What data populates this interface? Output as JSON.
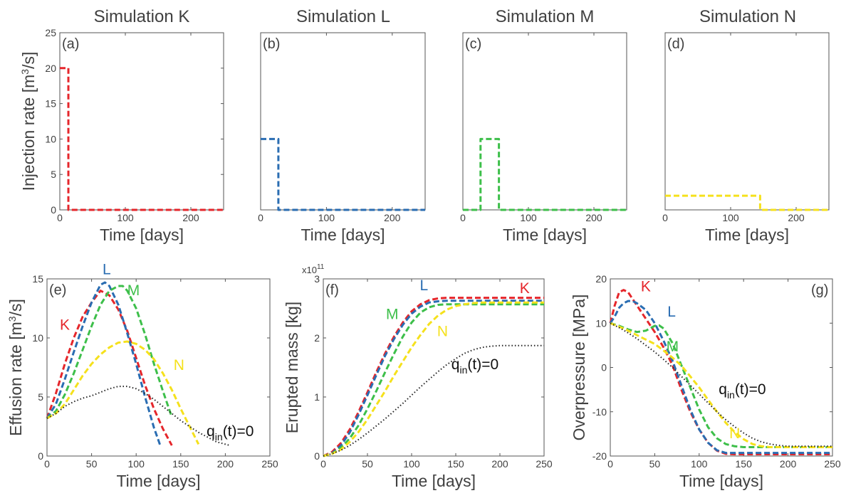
{
  "figure": {
    "panel_titles": [
      "Simulation K",
      "Simulation L",
      "Simulation M",
      "Simulation N"
    ]
  },
  "colors": {
    "K": "#e5262b",
    "L": "#2a6db2",
    "M": "#3dbf4a",
    "N": "#f5e11c",
    "zero": "#222222",
    "axis": "#555555",
    "text": "#404040"
  },
  "chart_data": [
    {
      "id": "a",
      "panel_label": "(a)",
      "type": "line",
      "title": "Simulation K",
      "xlabel": "Time [days]",
      "ylabel": "Injection rate  [m",
      "ylabel_sup": "3",
      "ylabel_end": "/s]",
      "xlim": [
        0,
        250
      ],
      "ylim": [
        0,
        25
      ],
      "xticks": [
        0,
        100,
        200
      ],
      "yticks": [
        0,
        5,
        10,
        15,
        20,
        25
      ],
      "series": [
        {
          "key": "K",
          "x": [
            0,
            13,
            13,
            250
          ],
          "y": [
            20,
            20,
            0,
            0
          ]
        }
      ]
    },
    {
      "id": "b",
      "panel_label": "(b)",
      "type": "line",
      "title": "Simulation L",
      "xlabel": "Time [days]",
      "xlim": [
        0,
        250
      ],
      "ylim": [
        0,
        25
      ],
      "xticks": [
        0,
        100,
        200
      ],
      "yticks": [],
      "series": [
        {
          "key": "L",
          "x": [
            0,
            27,
            27,
            250
          ],
          "y": [
            10,
            10,
            0,
            0
          ]
        }
      ]
    },
    {
      "id": "c",
      "panel_label": "(c)",
      "type": "line",
      "title": "Simulation M",
      "xlabel": "Time [days]",
      "xlim": [
        0,
        250
      ],
      "ylim": [
        0,
        25
      ],
      "xticks": [
        0,
        100,
        200
      ],
      "yticks": [],
      "series": [
        {
          "key": "M",
          "x": [
            0,
            27,
            27,
            55,
            55,
            250
          ],
          "y": [
            0,
            0,
            10,
            10,
            0,
            0
          ]
        }
      ]
    },
    {
      "id": "d",
      "panel_label": "(d)",
      "type": "line",
      "title": "Simulation N",
      "xlabel": "Time [days]",
      "xlim": [
        0,
        250
      ],
      "ylim": [
        0,
        25
      ],
      "xticks": [
        0,
        100,
        200
      ],
      "yticks": [],
      "series": [
        {
          "key": "N",
          "x": [
            0,
            145,
            145,
            250
          ],
          "y": [
            2,
            2,
            0,
            0
          ]
        }
      ]
    },
    {
      "id": "e",
      "panel_label": "(e)",
      "type": "line",
      "xlabel": "Time [days]",
      "ylabel": "Effusion rate  [m",
      "ylabel_sup": "3",
      "ylabel_end": "/s]",
      "xlim": [
        0,
        250
      ],
      "ylim": [
        0,
        15
      ],
      "xticks": [
        0,
        50,
        100,
        150,
        200,
        250
      ],
      "yticks": [
        0,
        5,
        10,
        15
      ],
      "series": [
        {
          "key": "K",
          "x": [
            0,
            10,
            20,
            30,
            40,
            50,
            60,
            70,
            80,
            90,
            100,
            110,
            120,
            130,
            140
          ],
          "y": [
            3.2,
            5.3,
            7.8,
            10,
            11.8,
            13,
            14,
            13.6,
            12.4,
            10.6,
            8.3,
            6,
            4,
            2.3,
            0.9
          ]
        },
        {
          "key": "L",
          "x": [
            0,
            10,
            20,
            30,
            40,
            50,
            60,
            65,
            70,
            80,
            90,
            100,
            110,
            120,
            127
          ],
          "y": [
            3.2,
            4.4,
            6.5,
            8.8,
            11,
            13,
            14.5,
            14.7,
            14.4,
            12.8,
            10.4,
            7.8,
            5,
            2.4,
            0.9
          ]
        },
        {
          "key": "M",
          "x": [
            0,
            10,
            20,
            30,
            40,
            50,
            60,
            70,
            80,
            85,
            90,
            100,
            110,
            120,
            130,
            140
          ],
          "y": [
            3.2,
            3.8,
            5.2,
            7,
            9,
            11,
            12.8,
            14,
            14.4,
            14.4,
            14,
            12.5,
            10.3,
            7.8,
            5.5,
            3.3
          ]
        },
        {
          "key": "N",
          "x": [
            0,
            10,
            20,
            30,
            40,
            50,
            60,
            70,
            80,
            90,
            100,
            110,
            120,
            130,
            140,
            150,
            160,
            170
          ],
          "y": [
            3.2,
            3.6,
            4.4,
            5.6,
            6.8,
            7.8,
            8.6,
            9.2,
            9.6,
            9.7,
            9.5,
            9,
            8.2,
            7,
            5.6,
            4,
            2.5,
            1
          ]
        },
        {
          "key": "zero",
          "x": [
            0,
            10,
            20,
            30,
            40,
            50,
            60,
            70,
            80,
            90,
            100,
            110,
            120,
            130,
            140,
            150,
            160,
            170,
            180,
            190,
            200,
            205
          ],
          "y": [
            3.2,
            3.6,
            4.2,
            4.6,
            4.9,
            5.1,
            5.4,
            5.7,
            5.9,
            5.9,
            5.7,
            5.3,
            4.8,
            4.2,
            3.6,
            3,
            2.5,
            2,
            1.6,
            1.2,
            1,
            0.9
          ]
        }
      ],
      "annotations": [
        {
          "text": "L",
          "key": "L",
          "x": 67,
          "y": 15.4
        },
        {
          "text": "M",
          "key": "M",
          "x": 97,
          "y": 13.6
        },
        {
          "text": "K",
          "key": "K",
          "x": 20,
          "y": 10.7
        },
        {
          "text": "N",
          "key": "N",
          "x": 148,
          "y": 7.3
        }
      ],
      "zero_label": {
        "text": "q",
        "sub": "in",
        "end": "(t)=0",
        "x": 179,
        "y": 1.7
      }
    },
    {
      "id": "f",
      "panel_label": "(f)",
      "type": "line",
      "xlabel": "Time [days]",
      "ylabel": "Erupted mass  [kg]",
      "y_multiplier": "x10",
      "y_multiplier_exp": "11",
      "xlim": [
        0,
        250
      ],
      "ylim": [
        0,
        3
      ],
      "xticks": [
        0,
        50,
        100,
        150,
        200,
        250
      ],
      "yticks": [
        0,
        1,
        2,
        3
      ],
      "series": [
        {
          "key": "K",
          "x": [
            0,
            10,
            20,
            30,
            40,
            50,
            60,
            70,
            80,
            90,
            100,
            110,
            120,
            130,
            140,
            150,
            250
          ],
          "y": [
            0,
            0.07,
            0.22,
            0.45,
            0.75,
            1.08,
            1.42,
            1.74,
            2.02,
            2.26,
            2.45,
            2.57,
            2.64,
            2.67,
            2.68,
            2.68,
            2.68
          ]
        },
        {
          "key": "L",
          "x": [
            0,
            10,
            20,
            30,
            40,
            50,
            60,
            70,
            80,
            90,
            100,
            110,
            120,
            130,
            140,
            250
          ],
          "y": [
            0,
            0.05,
            0.18,
            0.4,
            0.7,
            1.03,
            1.37,
            1.7,
            1.98,
            2.22,
            2.41,
            2.53,
            2.6,
            2.62,
            2.63,
            2.63
          ]
        },
        {
          "key": "M",
          "x": [
            0,
            10,
            20,
            30,
            40,
            50,
            60,
            70,
            80,
            90,
            100,
            110,
            120,
            130,
            140,
            150,
            250
          ],
          "y": [
            0,
            0.04,
            0.14,
            0.3,
            0.52,
            0.8,
            1.1,
            1.42,
            1.73,
            2.02,
            2.26,
            2.43,
            2.52,
            2.56,
            2.57,
            2.57,
            2.57
          ]
        },
        {
          "key": "N",
          "x": [
            0,
            10,
            20,
            30,
            40,
            50,
            60,
            70,
            80,
            90,
            100,
            110,
            120,
            130,
            140,
            150,
            160,
            170,
            180,
            250
          ],
          "y": [
            0,
            0.04,
            0.11,
            0.24,
            0.41,
            0.62,
            0.86,
            1.1,
            1.36,
            1.6,
            1.84,
            2.05,
            2.24,
            2.38,
            2.48,
            2.54,
            2.57,
            2.59,
            2.6,
            2.6
          ]
        },
        {
          "key": "zero",
          "x": [
            0,
            10,
            20,
            30,
            40,
            50,
            60,
            70,
            80,
            90,
            100,
            110,
            120,
            130,
            140,
            150,
            160,
            170,
            180,
            190,
            200,
            250
          ],
          "y": [
            0,
            0.04,
            0.1,
            0.18,
            0.28,
            0.39,
            0.51,
            0.63,
            0.76,
            0.89,
            1.03,
            1.17,
            1.3,
            1.43,
            1.55,
            1.65,
            1.74,
            1.8,
            1.84,
            1.86,
            1.87,
            1.87
          ]
        }
      ],
      "annotations": [
        {
          "text": "L",
          "key": "L",
          "x": 114,
          "y": 2.81
        },
        {
          "text": "K",
          "key": "K",
          "x": 228,
          "y": 2.76
        },
        {
          "text": "M",
          "key": "M",
          "x": 78,
          "y": 2.32
        },
        {
          "text": "N",
          "key": "N",
          "x": 135,
          "y": 2.03
        }
      ],
      "zero_label": {
        "text": "q",
        "sub": "in",
        "end": "(t)=0",
        "x": 145,
        "y": 1.47
      }
    },
    {
      "id": "g",
      "panel_label": "(g)",
      "type": "line",
      "xlabel": "Time [days]",
      "ylabel": "Overpressure [MPa]",
      "xlim": [
        0,
        250
      ],
      "ylim": [
        -20,
        20
      ],
      "xticks": [
        0,
        50,
        100,
        150,
        200,
        250
      ],
      "yticks": [
        -20,
        -10,
        0,
        10,
        20
      ],
      "series": [
        {
          "key": "K",
          "x": [
            0,
            5,
            10,
            15,
            20,
            25,
            30,
            40,
            50,
            60,
            70,
            80,
            90,
            100,
            110,
            120,
            130,
            140,
            250
          ],
          "y": [
            10,
            14,
            17,
            17.5,
            17,
            15.5,
            14,
            11,
            8,
            4.5,
            0.5,
            -5,
            -10,
            -14,
            -17,
            -18.8,
            -19.5,
            -19.6,
            -19.6
          ]
        },
        {
          "key": "L",
          "x": [
            0,
            5,
            10,
            15,
            20,
            25,
            30,
            40,
            50,
            60,
            70,
            80,
            90,
            100,
            110,
            120,
            130,
            250
          ],
          "y": [
            10,
            11.5,
            13.5,
            14.5,
            15,
            15,
            14.5,
            13,
            10,
            6,
            1.5,
            -4,
            -9.5,
            -14,
            -17,
            -18.7,
            -19.3,
            -19.3
          ]
        },
        {
          "key": "M",
          "x": [
            0,
            10,
            20,
            30,
            40,
            50,
            55,
            60,
            70,
            80,
            90,
            100,
            110,
            120,
            130,
            140,
            150,
            160,
            250
          ],
          "y": [
            10,
            9.4,
            8.6,
            8,
            8.3,
            9.4,
            9.5,
            8.8,
            5.5,
            0.5,
            -4.5,
            -9.5,
            -13.5,
            -16,
            -17.3,
            -17.8,
            -18,
            -18,
            -18
          ]
        },
        {
          "key": "N",
          "x": [
            0,
            10,
            20,
            30,
            40,
            50,
            60,
            70,
            80,
            90,
            100,
            110,
            120,
            130,
            140,
            150,
            160,
            170,
            180,
            250
          ],
          "y": [
            10,
            9.2,
            8.3,
            7.3,
            6.3,
            5.3,
            3.8,
            2.2,
            0.4,
            -2,
            -4.5,
            -7.3,
            -10,
            -12.5,
            -14.6,
            -16.2,
            -17.3,
            -17.8,
            -18,
            -18
          ]
        },
        {
          "key": "zero",
          "x": [
            0,
            10,
            20,
            30,
            40,
            50,
            60,
            70,
            80,
            90,
            100,
            110,
            120,
            130,
            140,
            150,
            160,
            170,
            180,
            190,
            200,
            250
          ],
          "y": [
            10,
            9,
            7.8,
            6.5,
            5,
            3.5,
            1.8,
            0,
            -2,
            -4,
            -6,
            -8,
            -10,
            -11.8,
            -13.4,
            -14.8,
            -16,
            -16.8,
            -17.3,
            -17.6,
            -17.8,
            -17.8
          ]
        }
      ],
      "annotations": [
        {
          "text": "K",
          "key": "K",
          "x": 40,
          "y": 17.2
        },
        {
          "text": "L",
          "key": "L",
          "x": 69,
          "y": 11.5
        },
        {
          "text": "M",
          "key": "M",
          "x": 70,
          "y": 3.6
        },
        {
          "text": "N",
          "key": "N",
          "x": 140,
          "y": -16
        }
      ],
      "zero_label": {
        "text": "q",
        "sub": "in",
        "end": "(t)=0",
        "x": 122,
        "y": -6
      }
    }
  ]
}
